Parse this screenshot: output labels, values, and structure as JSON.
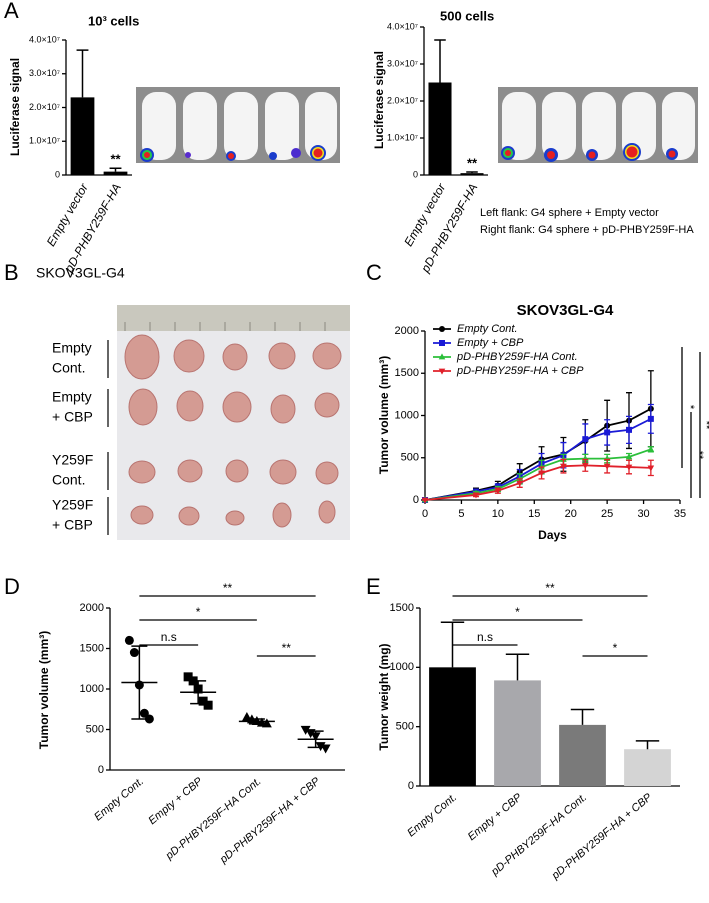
{
  "panel_labels": [
    "A",
    "B",
    "C",
    "D",
    "E"
  ],
  "panel_a": {
    "notes": [
      "Left flank: G4 sphere + Empty vector",
      "Right flank: G4 sphere + pD-PHBY259F-HA"
    ]
  },
  "panel_b": {
    "title": "SKOV3GL-G4",
    "rows": [
      [
        "Empty",
        "Cont."
      ],
      [
        "Empty",
        "+ CBP"
      ],
      [
        "Y259F",
        "Cont."
      ],
      [
        "Y259F",
        "+ CBP"
      ]
    ]
  },
  "chart_data": [
    {
      "type": "bar",
      "title": "10³ cells",
      "y_label": "Luciferase signal",
      "categories": [
        "Empty vector",
        "pD-PHBY259F-HA"
      ],
      "values": [
        23000000,
        1000000
      ],
      "errors": [
        14000000,
        1000000
      ],
      "colors": [
        "#000000",
        "#000000"
      ],
      "significance": [
        "**"
      ],
      "ylim": [
        0,
        40000000
      ],
      "yticks": [
        0,
        {
          "value": 10000000,
          "label": "1.0×10⁷"
        },
        {
          "value": 20000000,
          "label": "2.0×10⁷"
        },
        {
          "value": 30000000,
          "label": "3.0×10⁷"
        },
        {
          "value": 40000000,
          "label": "4.0×10⁷"
        }
      ]
    },
    {
      "type": "bar",
      "title": "500 cells",
      "y_label": "Luciferase signal",
      "categories": [
        "Empty vector",
        "pD-PHBY259F-HA"
      ],
      "values": [
        25000000,
        500000
      ],
      "errors": [
        11500000,
        300000
      ],
      "colors": [
        "#000000",
        "#000000"
      ],
      "significance": [
        "**"
      ],
      "ylim": [
        0,
        40000000
      ],
      "yticks": [
        0,
        {
          "value": 10000000,
          "label": "1.0×10⁷"
        },
        {
          "value": 20000000,
          "label": "2.0×10⁷"
        },
        {
          "value": 30000000,
          "label": "3.0×10⁷"
        },
        {
          "value": 40000000,
          "label": "4.0×10⁷"
        }
      ]
    },
    {
      "type": "line",
      "title": "SKOV3GL-G4",
      "x_label": "Days",
      "y_label": "Tumor volume (mm³)",
      "x": [
        0,
        7,
        10,
        13,
        16,
        19,
        22,
        25,
        28,
        31
      ],
      "series": [
        {
          "name": "Empty Cont.",
          "color": "#000000",
          "marker": "circle",
          "values": [
            0,
            110,
            170,
            330,
            480,
            540,
            700,
            880,
            940,
            1080
          ],
          "errors": [
            0,
            30,
            50,
            100,
            150,
            200,
            250,
            300,
            330,
            450
          ]
        },
        {
          "name": "Empty + CBP",
          "color": "#1a1ad6",
          "marker": "square",
          "values": [
            0,
            100,
            150,
            280,
            430,
            530,
            720,
            800,
            830,
            960
          ],
          "errors": [
            0,
            25,
            40,
            80,
            120,
            150,
            180,
            150,
            160,
            170
          ]
        },
        {
          "name": "pD-PHBY259F-HA Cont.",
          "color": "#2bbf3a",
          "marker": "triangle",
          "values": [
            0,
            80,
            130,
            250,
            390,
            480,
            490,
            490,
            510,
            600
          ],
          "errors": [
            0,
            20,
            30,
            60,
            80,
            60,
            50,
            50,
            40,
            30
          ]
        },
        {
          "name": "pD-PHBY259F-HA + CBP",
          "color": "#e0202a",
          "marker": "triangle-down",
          "values": [
            0,
            60,
            110,
            200,
            320,
            400,
            410,
            400,
            390,
            380
          ],
          "errors": [
            0,
            20,
            30,
            50,
            70,
            80,
            70,
            80,
            80,
            90
          ]
        }
      ],
      "xlim": [
        0,
        35
      ],
      "xticks": [
        0,
        5,
        10,
        15,
        20,
        25,
        30,
        35
      ],
      "ylim": [
        0,
        2000
      ],
      "yticks": [
        0,
        500,
        1000,
        1500,
        2000
      ],
      "legend": "upper left",
      "significance": [
        "*",
        "**",
        "**"
      ]
    },
    {
      "type": "dot",
      "y_label": "Tumor volume (mm³)",
      "categories": [
        "Empty Cont.",
        "Empty + CBP",
        "pD-PHBY259F-HA Cont.",
        "pD-PHBY259F-HA + CBP"
      ],
      "markers": [
        "circle",
        "square",
        "triangle",
        "triangle-down"
      ],
      "color": "#000000",
      "points": [
        [
          1600,
          1450,
          1050,
          700,
          630
        ],
        [
          1150,
          1100,
          1000,
          850,
          800
        ],
        [
          650,
          620,
          600,
          580,
          570
        ],
        [
          500,
          460,
          420,
          300,
          270
        ]
      ],
      "means": [
        1080,
        960,
        600,
        380
      ],
      "sds": [
        450,
        140,
        30,
        100
      ],
      "ylim": [
        0,
        2000
      ],
      "yticks": [
        0,
        500,
        1000,
        1500,
        2000
      ],
      "significance": [
        "**",
        "*",
        "n.s",
        "**"
      ]
    },
    {
      "type": "bar",
      "y_label": "Tumor weight (mg)",
      "categories": [
        "Empty Cont.",
        "Empty + CBP",
        "pD-PHBY259F-HA Cont.",
        "pD-PHBY259F-HA + CBP"
      ],
      "values": [
        1000,
        890,
        515,
        310
      ],
      "errors": [
        380,
        220,
        130,
        70
      ],
      "colors": [
        "#000000",
        "#a8a8ac",
        "#7a7a7a",
        "#d4d4d4"
      ],
      "ylim": [
        0,
        1500
      ],
      "yticks": [
        0,
        500,
        1000,
        1500
      ],
      "significance": [
        "**",
        "*",
        "n.s",
        "*"
      ]
    }
  ]
}
